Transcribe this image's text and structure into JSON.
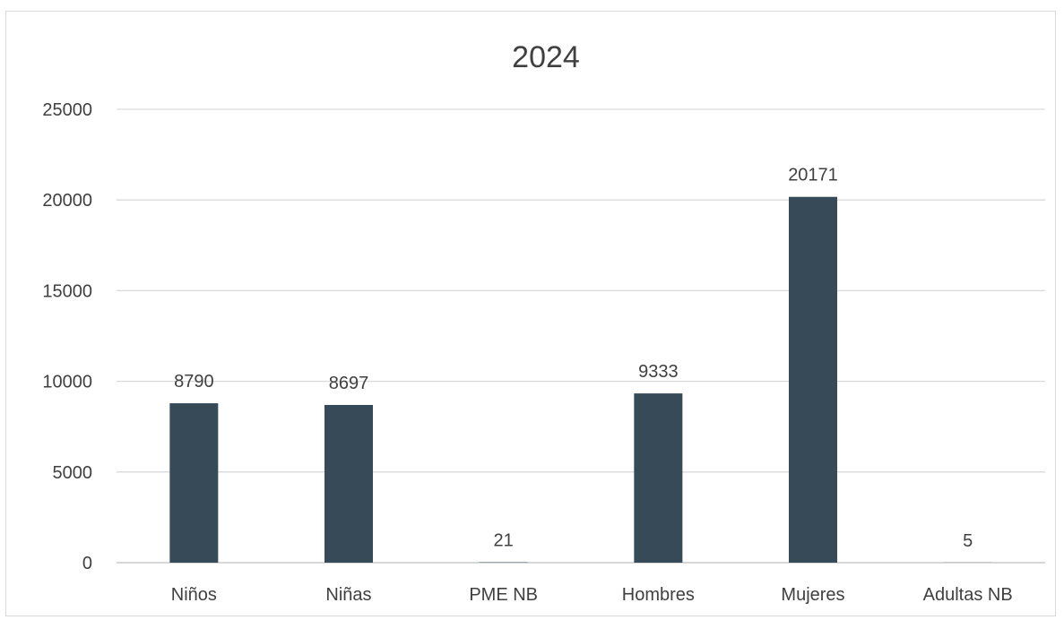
{
  "chart_data": {
    "type": "bar",
    "title": "2024",
    "xlabel": "",
    "ylabel": "",
    "categories": [
      "Niños",
      "Niñas",
      "PME NB",
      "Hombres",
      "Mujeres",
      "Adultas NB"
    ],
    "values": [
      8790,
      8697,
      21,
      9333,
      20171,
      5
    ],
    "value_labels": [
      "8790",
      "8697",
      "21",
      "9333",
      "20171",
      "5"
    ],
    "ylim": [
      0,
      25000
    ],
    "y_ticks": [
      0,
      5000,
      10000,
      15000,
      20000,
      25000
    ],
    "y_tick_labels": [
      "0",
      "5000",
      "10000",
      "15000",
      "20000",
      "25000"
    ],
    "grid": true,
    "legend": "none",
    "bar_color": "#364b57"
  }
}
